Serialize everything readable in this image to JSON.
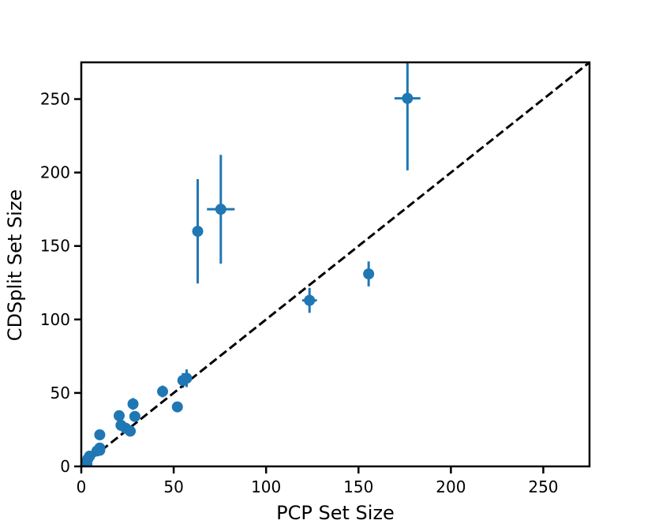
{
  "chart_data": {
    "type": "scatter",
    "title": "",
    "xlabel": "PCP Set Size",
    "ylabel": "CDSplit Set Size",
    "xlim": [
      0,
      275
    ],
    "ylim": [
      0,
      275
    ],
    "xticks": [
      0,
      50,
      100,
      150,
      200,
      250
    ],
    "yticks": [
      0,
      50,
      100,
      150,
      200,
      250
    ],
    "grid": false,
    "reference_line": {
      "type": "identity",
      "style": "dashed",
      "color": "#000000"
    },
    "series": [
      {
        "color": "#1f77b4",
        "points": [
          {
            "x": 176.5,
            "y": 250.5,
            "xerr": 7,
            "yerr": 49
          },
          {
            "x": 75.5,
            "y": 175,
            "xerr": 7.5,
            "yerr": 37
          },
          {
            "x": 63,
            "y": 160,
            "xerr": 0,
            "yerr": 35.5
          },
          {
            "x": 155.5,
            "y": 131,
            "xerr": 0,
            "yerr": 8.5
          },
          {
            "x": 123.5,
            "y": 113,
            "xerr": 4,
            "yerr": 8.5
          },
          {
            "x": 57,
            "y": 60,
            "xerr": 0,
            "yerr": 6
          },
          {
            "x": 55,
            "y": 58.5,
            "xerr": 0,
            "yerr": 5
          },
          {
            "x": 44,
            "y": 51,
            "xerr": 0,
            "yerr": 4
          },
          {
            "x": 52,
            "y": 40.5,
            "xerr": 0,
            "yerr": 0
          },
          {
            "x": 28,
            "y": 42.5,
            "xerr": 0,
            "yerr": 4
          },
          {
            "x": 29,
            "y": 34,
            "xerr": 0,
            "yerr": 3
          },
          {
            "x": 20.5,
            "y": 34.5,
            "xerr": 0,
            "yerr": 2
          },
          {
            "x": 21.5,
            "y": 28,
            "xerr": 0,
            "yerr": 2
          },
          {
            "x": 24,
            "y": 26,
            "xerr": 0,
            "yerr": 0
          },
          {
            "x": 26.5,
            "y": 24,
            "xerr": 0,
            "yerr": 0
          },
          {
            "x": 10,
            "y": 21.5,
            "xerr": 0,
            "yerr": 1
          },
          {
            "x": 10,
            "y": 12.5,
            "xerr": 0,
            "yerr": 1
          },
          {
            "x": 10,
            "y": 11,
            "xerr": 0,
            "yerr": 0
          },
          {
            "x": 8.5,
            "y": 10.5,
            "xerr": 0,
            "yerr": 0
          },
          {
            "x": 4.5,
            "y": 7,
            "xerr": 0,
            "yerr": 1
          },
          {
            "x": 3.5,
            "y": 5,
            "xerr": 0,
            "yerr": 0
          },
          {
            "x": 3,
            "y": 3.5,
            "xerr": 0,
            "yerr": 0
          },
          {
            "x": 3,
            "y": 1.5,
            "xerr": 0,
            "yerr": 0
          },
          {
            "x": 2.5,
            "y": 0.5,
            "xerr": 0,
            "yerr": 0
          }
        ]
      }
    ]
  }
}
